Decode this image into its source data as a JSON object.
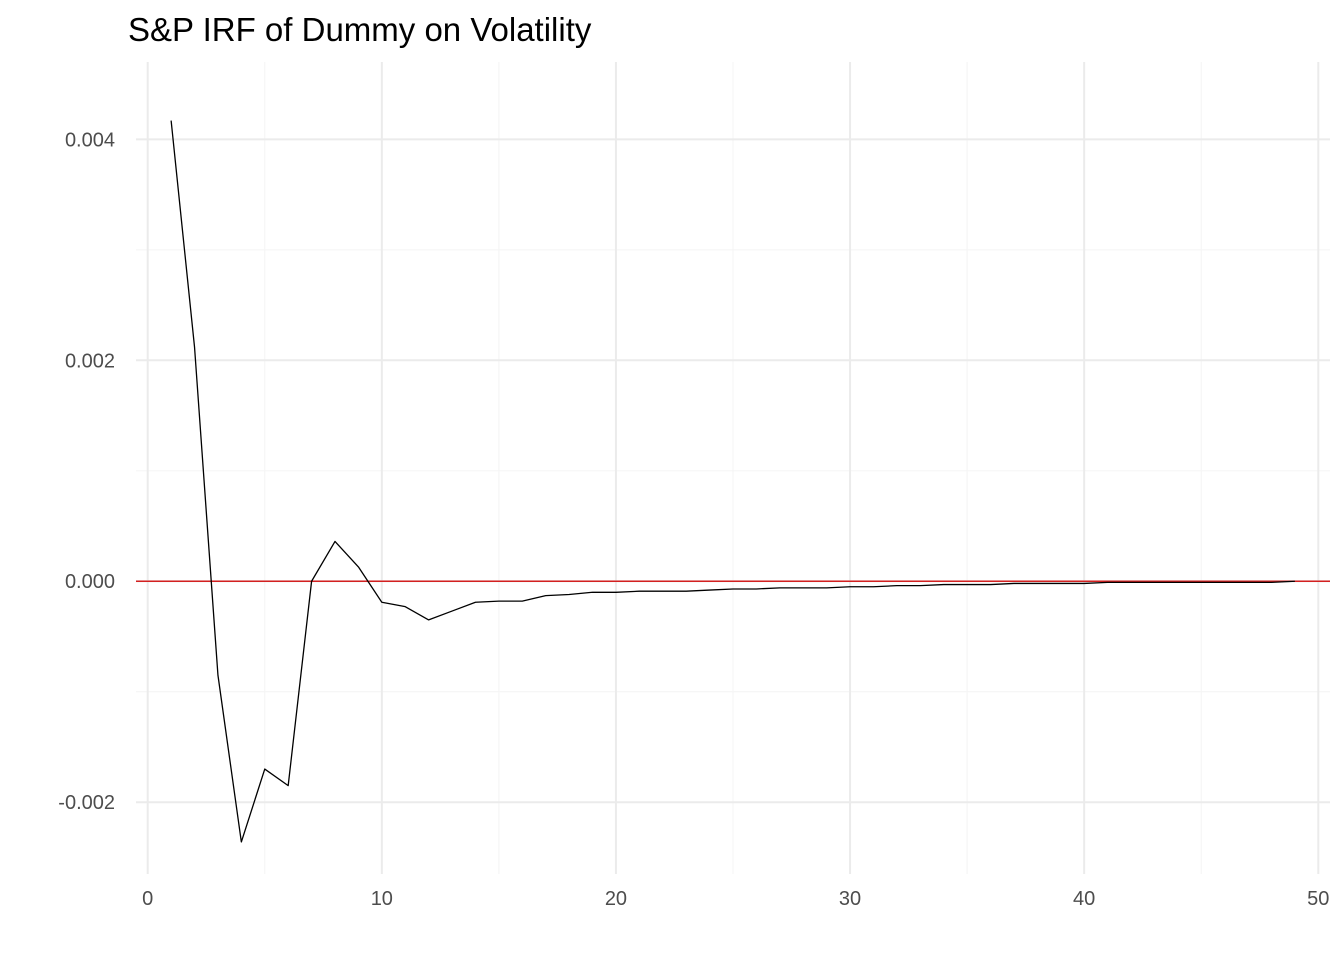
{
  "chart_data": {
    "type": "line",
    "title": "S&P IRF of Dummy on Volatility",
    "xlabel": "",
    "ylabel": "",
    "xlim": [
      -0.5,
      50.5
    ],
    "ylim": [
      -0.00265,
      0.0047
    ],
    "x_ticks": [
      0,
      10,
      20,
      30,
      40,
      50
    ],
    "x_tick_labels": [
      "0",
      "10",
      "20",
      "30",
      "40",
      "50"
    ],
    "x_minor_ticks": [
      5,
      15,
      25,
      35,
      45
    ],
    "y_ticks": [
      -0.002,
      0.0,
      0.002,
      0.004
    ],
    "y_tick_labels": [
      "-0.002",
      "0.000",
      "0.002",
      "0.004"
    ],
    "y_minor_ticks": [
      -0.001,
      0.001,
      0.003
    ],
    "grid": true,
    "legend": "none",
    "series": [
      {
        "color": "#000000",
        "x": [
          1,
          2,
          3,
          4,
          5,
          6,
          7,
          8,
          9,
          10,
          11,
          12,
          13,
          14,
          15,
          16,
          17,
          18,
          19,
          20,
          21,
          22,
          23,
          24,
          25,
          26,
          27,
          28,
          29,
          30,
          31,
          32,
          33,
          34,
          35,
          36,
          37,
          38,
          39,
          40,
          41,
          42,
          43,
          44,
          45,
          46,
          47,
          48,
          49
        ],
        "values": [
          0.00417,
          0.00212,
          -0.00085,
          -0.00236,
          -0.0017,
          -0.00185,
          0.0,
          0.00036,
          0.00013,
          -0.00019,
          -0.00023,
          -0.00035,
          -0.00027,
          -0.00019,
          -0.00018,
          -0.00018,
          -0.00013,
          -0.00012,
          -0.0001,
          -0.0001,
          -9e-05,
          -9e-05,
          -9e-05,
          -8e-05,
          -7e-05,
          -7e-05,
          -6e-05,
          -6e-05,
          -6e-05,
          -5e-05,
          -5e-05,
          -4e-05,
          -4e-05,
          -3e-05,
          -3e-05,
          -3e-05,
          -2e-05,
          -2e-05,
          -2e-05,
          -2e-05,
          -1e-05,
          -1e-05,
          -1e-05,
          -1e-05,
          -1e-05,
          -1e-05,
          -1e-05,
          -1e-05,
          0.0
        ]
      }
    ],
    "reference_line": {
      "y": 0.0,
      "color": "#d32020"
    },
    "colors": {
      "grid_major": "#ebebeb",
      "grid_minor": "#f5f5f5",
      "tick_text": "#4d4d4d",
      "title": "#000000",
      "background": "#ffffff"
    }
  }
}
